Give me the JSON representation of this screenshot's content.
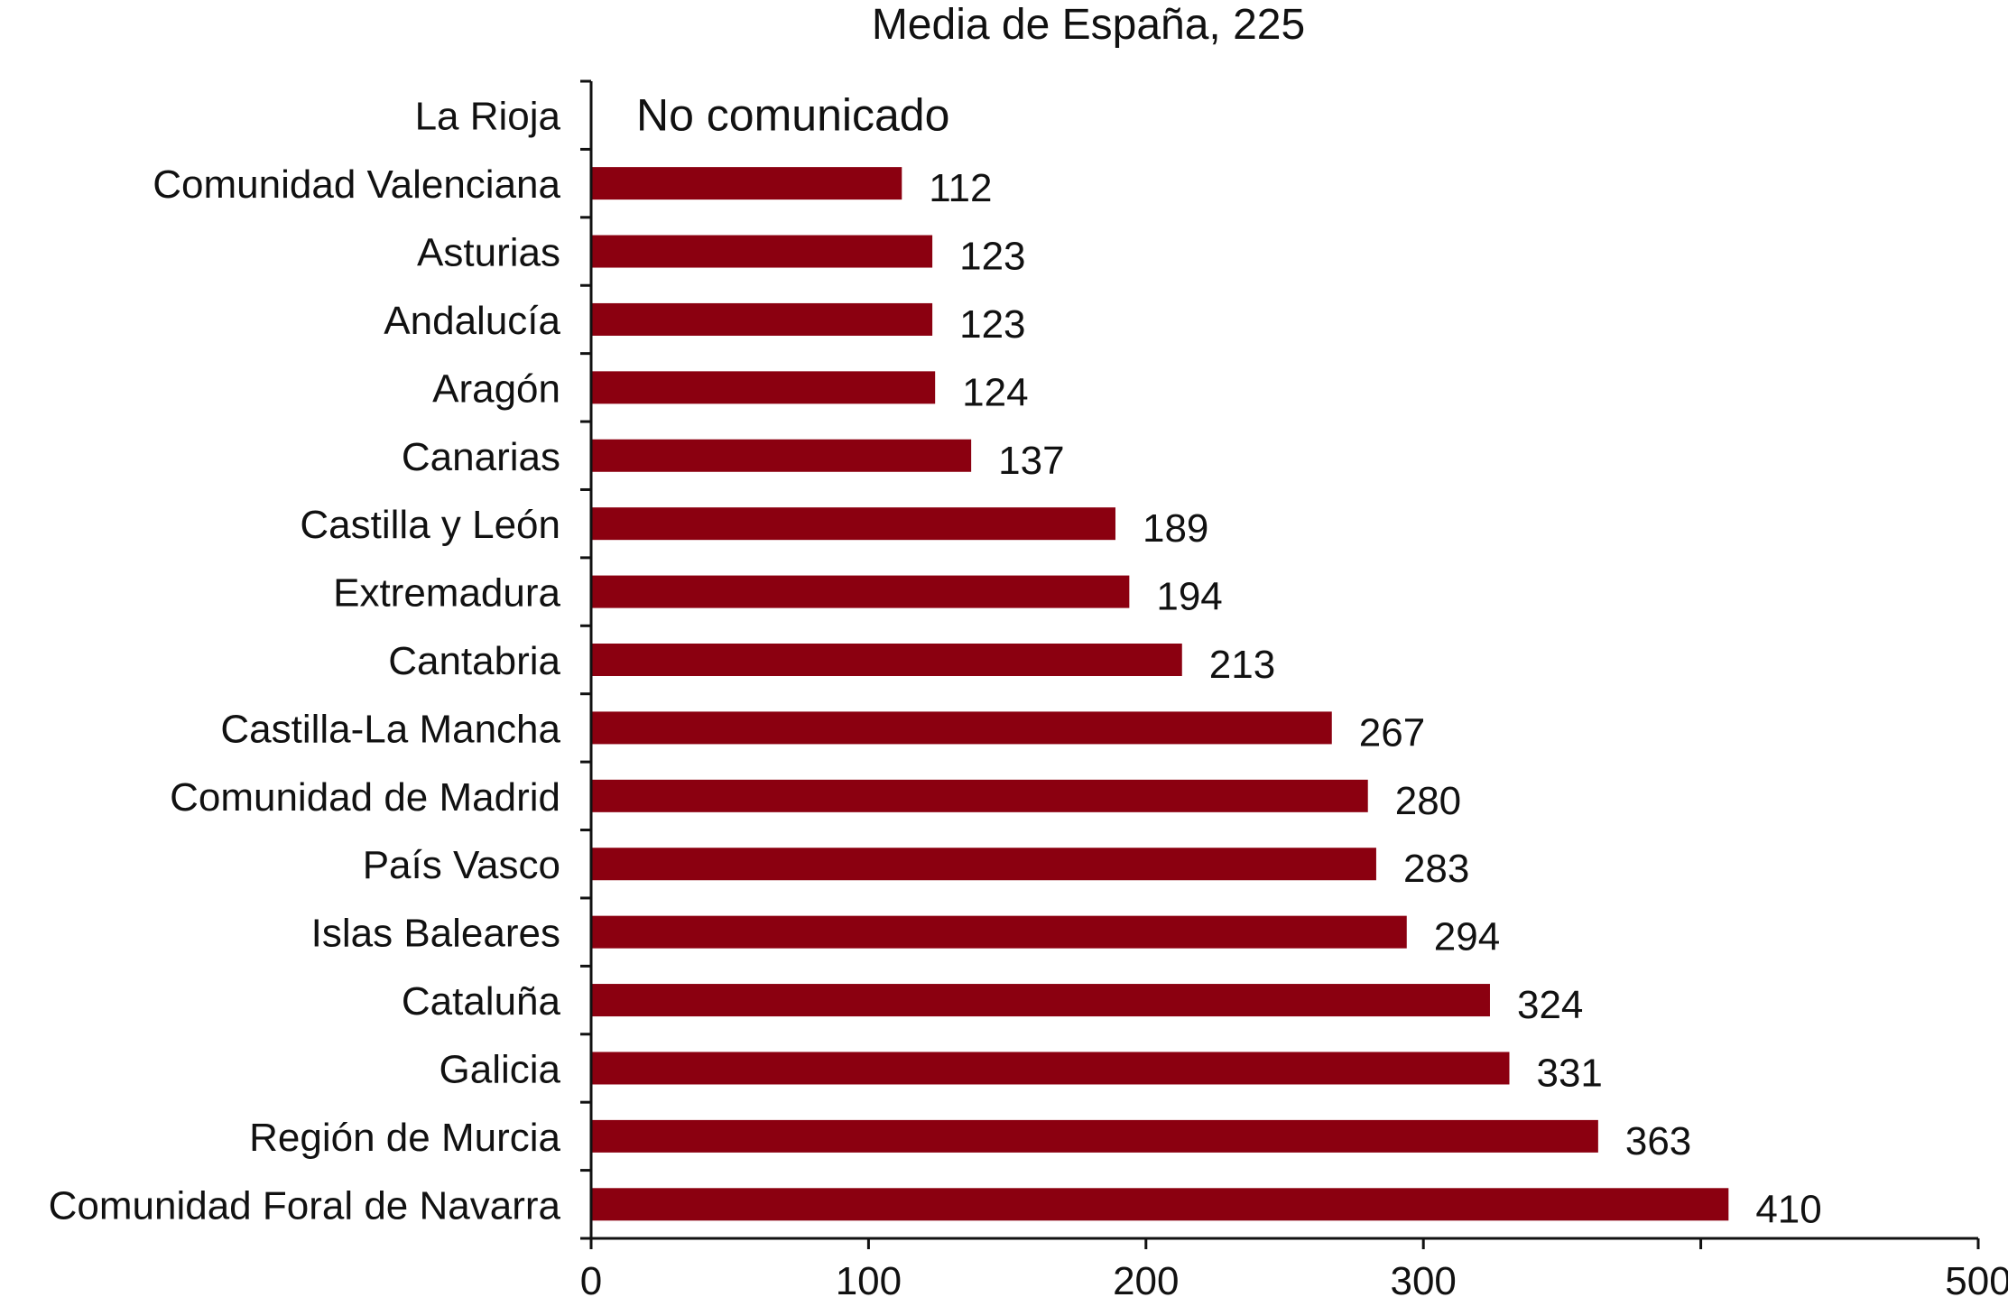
{
  "chart_data": {
    "type": "bar",
    "orientation": "horizontal",
    "title": "Media de España, 225",
    "xlabel": "",
    "ylabel": "",
    "categories": [
      "La Rioja",
      "Comunidad Valenciana",
      "Asturias",
      "Andalucía",
      "Aragón",
      "Canarias",
      "Castilla y León",
      "Extremadura",
      "Cantabria",
      "Castilla-La Mancha",
      "Comunidad de Madrid",
      "País Vasco",
      "Islas Baleares",
      "Cataluña",
      "Galicia",
      "Región de Murcia",
      "Comunidad Foral de Navarra"
    ],
    "values": [
      null,
      112,
      123,
      123,
      124,
      137,
      189,
      194,
      213,
      267,
      280,
      283,
      294,
      324,
      331,
      363,
      410
    ],
    "value_labels": [
      "",
      "112",
      "123",
      "123",
      "124",
      "137",
      "189",
      "194",
      "213",
      "267",
      "280",
      "283",
      "294",
      "324",
      "331",
      "363",
      "410"
    ],
    "annotations": [
      {
        "category": "La Rioja",
        "text": "No comunicado"
      }
    ],
    "xlim": [
      0,
      500
    ],
    "x_ticks": [
      0,
      100,
      200,
      300,
      400,
      500
    ],
    "x_tick_labels": [
      "0",
      "100",
      "200",
      "300",
      "",
      "500"
    ],
    "grid": false,
    "legend": "none",
    "bar_color": "#8b0010",
    "axis_color": "#111111"
  }
}
